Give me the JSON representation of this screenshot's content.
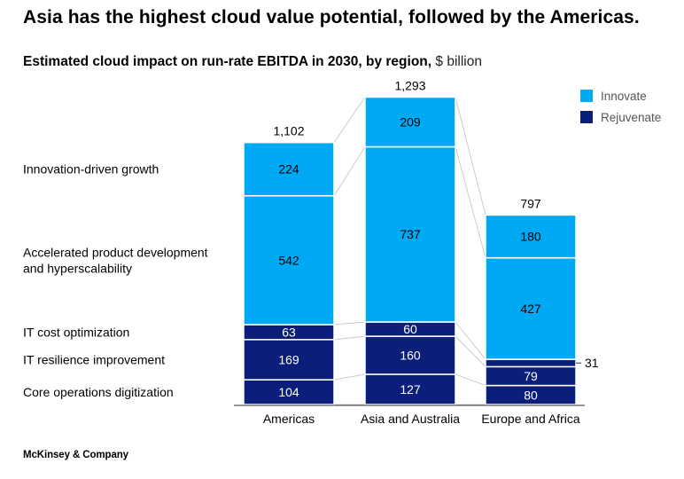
{
  "headline": "Asia has the highest cloud value potential, followed by the Americas.",
  "subtitle": {
    "bold": "Estimated cloud impact on run-rate EBITDA in 2030, by region,",
    "unit": "$ billion"
  },
  "footer": "McKinsey & Company",
  "colors": {
    "innovate": "#00A9F4",
    "rejuvenate": "#0B1F7A",
    "connector": "#CCCCCC",
    "axis": "#333333"
  },
  "chart_data": {
    "type": "bar",
    "stacked": true,
    "categories": [
      "Americas",
      "Asia and Australia",
      "Europe and Africa"
    ],
    "totals": [
      "1,102",
      "1,293",
      "797"
    ],
    "segments": [
      "Core operations digitization",
      "IT resilience improvement",
      "IT cost optimization",
      "Accelerated product development and hyperscalability",
      "Innovation-driven growth"
    ],
    "segment_labels": [
      [
        "Core operations digitization"
      ],
      [
        "IT resilience improvement"
      ],
      [
        "IT cost optimization"
      ],
      [
        "Accelerated product development",
        "and hyperscalability"
      ],
      [
        "Innovation-driven growth"
      ]
    ],
    "segment_groups": [
      "rejuvenate",
      "rejuvenate",
      "rejuvenate",
      "innovate",
      "innovate"
    ],
    "values": [
      [
        104,
        169,
        63,
        542,
        224
      ],
      [
        127,
        160,
        60,
        737,
        209
      ],
      [
        80,
        79,
        31,
        427,
        180
      ]
    ],
    "legend": [
      {
        "name": "Innovate",
        "group": "innovate"
      },
      {
        "name": "Rejuvenate",
        "group": "rejuvenate"
      }
    ],
    "legend_position": "top-right"
  }
}
